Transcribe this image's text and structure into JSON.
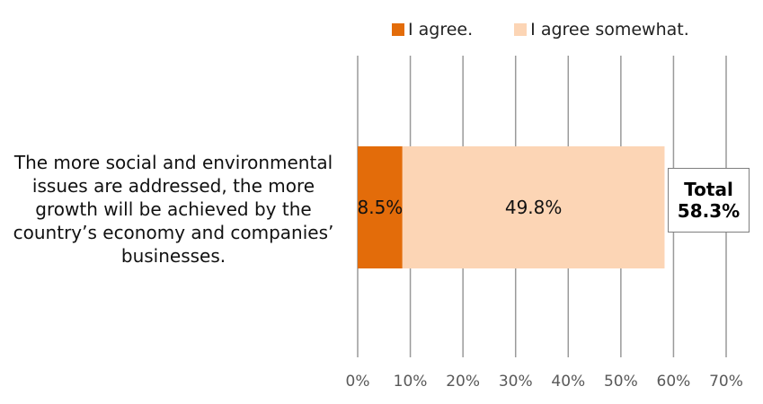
{
  "chart_data": {
    "type": "bar",
    "orientation": "horizontal",
    "stacked": true,
    "categories": [
      "The more social and environmental issues are addressed, the more growth will be achieved by the country’s economy and companies’ businesses."
    ],
    "series": [
      {
        "name": "I agree.",
        "values": [
          8.5
        ],
        "color": "#e36c0a",
        "data_labels": [
          "8.5%"
        ]
      },
      {
        "name": "I agree somewhat.",
        "values": [
          49.8
        ],
        "color": "#fcd5b5",
        "data_labels": [
          "49.8%"
        ]
      }
    ],
    "xlim": [
      0,
      70
    ],
    "x_ticks": [
      0,
      10,
      20,
      30,
      40,
      50,
      60,
      70
    ],
    "x_tick_labels": [
      "0%",
      "10%",
      "20%",
      "30%",
      "40%",
      "50%",
      "60%",
      "70%"
    ],
    "grid": "vertical",
    "legend_position": "top",
    "total": {
      "label": "Total",
      "value": "58.3%"
    }
  }
}
